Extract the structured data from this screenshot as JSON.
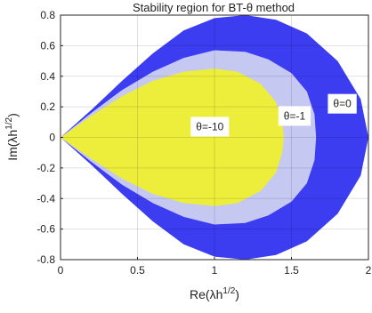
{
  "chart_data": {
    "type": "area",
    "title": "Stability region for BT-θ method",
    "xlabel": "Re(λh^{1/2})",
    "ylabel": "Im(λh^{1/2})",
    "xlim": [
      0,
      2
    ],
    "ylim": [
      -0.8,
      0.8
    ],
    "xticks": [
      "0",
      "0.5",
      "1",
      "1.5",
      "2"
    ],
    "xtick_values": [
      0,
      0.5,
      1,
      1.5,
      2
    ],
    "yticks": [
      "0.8",
      "0.6",
      "0.4",
      "0.2",
      "0",
      "-0.2",
      "-0.4",
      "-0.6",
      "-0.8"
    ],
    "ytick_values": [
      0.8,
      0.6,
      0.4,
      0.2,
      0,
      -0.2,
      -0.4,
      -0.6,
      -0.8
    ],
    "grid": true,
    "series": [
      {
        "name": "θ=0",
        "color": "#3c3cf0",
        "label_pos": [
          1.83,
          0.22
        ],
        "upper_boundary": [
          [
            0,
            0
          ],
          [
            0.2,
            0.18
          ],
          [
            0.4,
            0.37
          ],
          [
            0.6,
            0.55
          ],
          [
            0.8,
            0.7
          ],
          [
            1.0,
            0.78
          ],
          [
            1.2,
            0.8
          ],
          [
            1.4,
            0.77
          ],
          [
            1.6,
            0.68
          ],
          [
            1.8,
            0.5
          ],
          [
            1.95,
            0.25
          ],
          [
            2.0,
            0
          ]
        ]
      },
      {
        "name": "θ=-1",
        "color": "#c5c9f2",
        "label_pos": [
          1.52,
          0.14
        ],
        "upper_boundary": [
          [
            0,
            0
          ],
          [
            0.2,
            0.16
          ],
          [
            0.4,
            0.31
          ],
          [
            0.6,
            0.43
          ],
          [
            0.8,
            0.52
          ],
          [
            1.0,
            0.57
          ],
          [
            1.2,
            0.56
          ],
          [
            1.35,
            0.51
          ],
          [
            1.5,
            0.42
          ],
          [
            1.6,
            0.3
          ],
          [
            1.65,
            0.15
          ],
          [
            1.66,
            0
          ]
        ]
      },
      {
        "name": "θ=-10",
        "color": "#eded3c",
        "label_pos": [
          0.97,
          0.07
        ],
        "upper_boundary": [
          [
            0,
            0
          ],
          [
            0.2,
            0.14
          ],
          [
            0.4,
            0.27
          ],
          [
            0.6,
            0.37
          ],
          [
            0.8,
            0.43
          ],
          [
            1.0,
            0.45
          ],
          [
            1.15,
            0.43
          ],
          [
            1.3,
            0.35
          ],
          [
            1.4,
            0.23
          ],
          [
            1.44,
            0.1
          ],
          [
            1.45,
            0
          ]
        ]
      }
    ]
  }
}
